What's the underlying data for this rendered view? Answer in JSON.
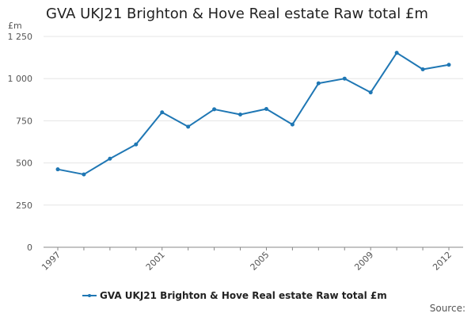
{
  "title": "GVA UKJ21 Brighton & Hove Real estate Raw total £m",
  "source_label": "Source:",
  "colors": {
    "series": "#1f77b4",
    "grid": "#e5e5e5",
    "axis": "#888888"
  },
  "chart_data": {
    "type": "line",
    "title": "GVA UKJ21 Brighton & Hove Real estate Raw total £m",
    "ylabel": "£m",
    "xlabel": "",
    "ylim": [
      0,
      1250
    ],
    "yticks": [
      0,
      250,
      500,
      750,
      1000,
      1250
    ],
    "ytick_labels": [
      "0",
      "250",
      "500",
      "750",
      "1 000",
      "1 250"
    ],
    "xlim": [
      1997,
      2012
    ],
    "xticks": [
      1997,
      2001,
      2005,
      2009,
      2012
    ],
    "xtick_labels": [
      "1997",
      "2001",
      "2005",
      "2009",
      "2012"
    ],
    "grid": "horizontal",
    "legend_position": "bottom",
    "x": [
      1997,
      1998,
      1999,
      2000,
      2001,
      2002,
      2003,
      2004,
      2005,
      2006,
      2007,
      2008,
      2009,
      2010,
      2011,
      2012
    ],
    "series": [
      {
        "name": "GVA UKJ21 Brighton & Hove Real estate Raw total £m",
        "values": [
          462,
          432,
          525,
          610,
          800,
          715,
          818,
          787,
          820,
          728,
          972,
          1000,
          918,
          1153,
          1055,
          1082
        ]
      }
    ]
  }
}
